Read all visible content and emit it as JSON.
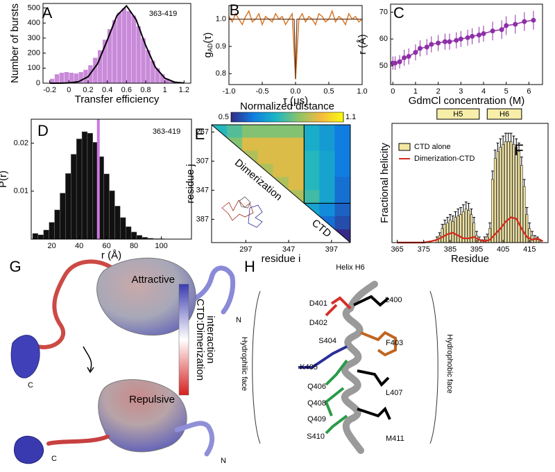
{
  "chart_data": [
    {
      "type": "histogram",
      "panel": "A",
      "annotation": "363-419",
      "xlabel": "Transfer efficiency",
      "ylabel": "Number of bursts",
      "color": "#c98ad9",
      "bins": [
        -0.2,
        -0.15,
        -0.1,
        -0.05,
        0,
        0.05,
        0.1,
        0.15,
        0.2,
        0.25,
        0.3,
        0.35,
        0.4,
        0.45,
        0.5,
        0.55,
        0.6,
        0.65,
        0.7,
        0.75,
        0.8,
        0.85,
        0.9,
        0.95,
        1,
        1.05,
        1.1,
        1.15
      ],
      "values": [
        30,
        60,
        70,
        75,
        70,
        65,
        75,
        90,
        120,
        170,
        220,
        290,
        360,
        420,
        470,
        500,
        480,
        450,
        380,
        300,
        220,
        150,
        100,
        60,
        30,
        15,
        5
      ],
      "fit": {
        "color": "#000000",
        "x": [
          -0.2,
          -0.1,
          0,
          0.1,
          0.2,
          0.3,
          0.4,
          0.5,
          0.6,
          0.7,
          0.8,
          0.9,
          1,
          1.1,
          1.2
        ],
        "values": [
          0,
          0.2,
          1.8,
          10,
          43,
          131,
          286,
          449,
          514,
          423,
          251,
          107,
          33,
          7,
          1
        ]
      },
      "xlim": [
        -0.27,
        1.27
      ],
      "ylim": [
        0,
        530
      ],
      "xticks": [
        -0.2,
        0,
        0.2,
        0.4,
        0.6,
        0.8,
        1,
        1.2
      ],
      "yticks": [
        0,
        100,
        200,
        300,
        400,
        500
      ]
    },
    {
      "type": "line",
      "panel": "B",
      "xlabel": "τ (μs)",
      "ylabel": {
        "main": "g",
        "sub": "AD",
        "tail": "(τ)"
      },
      "color": "#d8782a",
      "x": [
        -1,
        -0.95,
        -0.9,
        -0.85,
        -0.8,
        -0.75,
        -0.7,
        -0.65,
        -0.6,
        -0.55,
        -0.5,
        -0.45,
        -0.4,
        -0.35,
        -0.3,
        -0.25,
        -0.2,
        -0.15,
        -0.1,
        -0.05,
        0,
        0.05,
        0.1,
        0.15,
        0.2,
        0.25,
        0.3,
        0.35,
        0.4,
        0.45,
        0.5,
        0.55,
        0.6,
        0.65,
        0.7,
        0.75,
        0.8,
        0.85,
        0.9,
        0.95,
        1
      ],
      "values": [
        1.01,
        0.99,
        1.02,
        1,
        0.98,
        1.01,
        1.03,
        0.99,
        1,
        1.02,
        0.98,
        1.01,
        1,
        0.99,
        1.02,
        1,
        1.01,
        0.98,
        1,
        1.02,
        0.78,
        1,
        1.02,
        0.99,
        1.01,
        1,
        0.98,
        1.02,
        1.01,
        0.99,
        1,
        1.03,
        0.99,
        1.01,
        1,
        0.98,
        1.02,
        1,
        1.01,
        0.99,
        1
      ],
      "fit": {
        "color": "#6b3a1a",
        "x": [
          -1,
          -0.02,
          0,
          0.02,
          1
        ],
        "values": [
          1,
          1,
          0.78,
          1,
          1
        ]
      },
      "xlim": [
        -1,
        1
      ],
      "ylim": [
        0.76,
        1.05
      ],
      "xticks": [
        {
          "value": -1,
          "label": "-1.0"
        },
        -0.5,
        {
          "value": 0,
          "label": "0.0"
        },
        0.5,
        {
          "value": 1,
          "label": "1.0"
        }
      ],
      "yticks": [
        0.8,
        0.9,
        {
          "value": 1,
          "label": "1.0"
        }
      ]
    },
    {
      "type": "scatter",
      "panel": "C",
      "xlabel": "GdmCl concentration (M)",
      "ylabel": "r (Å)",
      "color": "#8e2fa8",
      "x": [
        0,
        0.1,
        0.3,
        0.5,
        0.7,
        1,
        1.2,
        1.5,
        1.7,
        2,
        2.3,
        2.5,
        2.8,
        3,
        3.3,
        3.5,
        3.8,
        4,
        4.4,
        4.8,
        5,
        5.4,
        5.8,
        6.2
      ],
      "values": [
        51,
        51,
        51.5,
        53,
        53.5,
        55,
        56.5,
        57,
        58,
        58.5,
        59,
        59,
        59.5,
        60,
        60.5,
        61,
        61.5,
        62,
        63,
        63.5,
        65,
        65.5,
        66.5,
        67
      ],
      "errors": [
        2.5,
        2.5,
        2.5,
        3,
        3,
        3,
        3,
        3,
        3,
        3,
        3,
        3,
        3,
        3,
        3,
        3,
        3,
        3,
        3.5,
        3.5,
        3.5,
        3.5,
        3.5,
        3.5
      ],
      "xlim": [
        -0.1,
        6.6
      ],
      "ylim": [
        43,
        73
      ],
      "xticks": [
        0,
        1,
        2,
        3,
        4,
        5,
        6
      ],
      "yticks": [
        50,
        60,
        70
      ]
    },
    {
      "type": "histogram",
      "panel": "D",
      "annotation": "363-419",
      "xlabel": "r (Å)",
      "ylabel": "P(r)",
      "color": "#111111",
      "bins": [
        6,
        10,
        14,
        18,
        22,
        26,
        30,
        34,
        38,
        42,
        46,
        50,
        54,
        58,
        62,
        66,
        70,
        74,
        78,
        82,
        86,
        90,
        94,
        98,
        102
      ],
      "values": [
        0.0012,
        0.0009,
        0.0019,
        0.0035,
        0.0061,
        0.0096,
        0.0137,
        0.0177,
        0.0209,
        0.0224,
        0.0221,
        0.0202,
        0.0172,
        0.0136,
        0.0101,
        0.0069,
        0.0045,
        0.0026,
        0.0015,
        0.0008,
        0.0004,
        0.0002,
        0.0001,
        0.0001
      ],
      "marker": {
        "x": 54,
        "color": "#cc77e0"
      },
      "xlim": [
        5,
        122
      ],
      "ylim": [
        0,
        0.025
      ],
      "xticks": [
        20,
        40,
        60,
        80,
        100
      ],
      "yticks": [
        0.01,
        0.02
      ]
    },
    {
      "type": "heatmap",
      "panel": "E",
      "xlabel": "residue i",
      "ylabel": "residue j",
      "regions": [
        "Dimerization",
        "CTD"
      ],
      "boundary": 365,
      "edges": [
        257,
        275,
        293,
        311,
        329,
        347,
        365,
        383,
        401,
        419
      ],
      "matrix": [
        [
          0.75,
          0.8,
          0.85,
          0.85,
          0.85,
          0.85,
          0.72,
          0.68,
          0.62
        ],
        [
          null,
          0.85,
          0.95,
          0.95,
          0.95,
          0.95,
          0.72,
          0.68,
          0.62
        ],
        [
          null,
          null,
          0.9,
          0.95,
          0.95,
          0.95,
          0.75,
          0.7,
          0.62
        ],
        [
          null,
          null,
          null,
          0.9,
          0.95,
          0.95,
          0.75,
          0.7,
          0.62
        ],
        [
          null,
          null,
          null,
          null,
          0.9,
          0.95,
          0.75,
          0.7,
          0.6
        ],
        [
          null,
          null,
          null,
          null,
          null,
          0.9,
          0.78,
          0.7,
          0.6
        ],
        [
          null,
          null,
          null,
          null,
          null,
          null,
          0.7,
          0.65,
          0.58
        ],
        [
          null,
          null,
          null,
          null,
          null,
          null,
          null,
          0.6,
          0.55
        ],
        [
          null,
          null,
          null,
          null,
          null,
          null,
          null,
          null,
          0.5
        ]
      ],
      "colormap": [
        "#352a87",
        "#0f7ee0",
        "#1bb6c4",
        "#8cc36a",
        "#f5ba3d",
        "#f9fb0e"
      ],
      "colorbar": {
        "title": "Normalized distance",
        "lim": [
          0.5,
          1.1
        ],
        "ticks": [
          0.5,
          1.1
        ]
      },
      "xlim": [
        257,
        419
      ],
      "ylim": [
        257,
        419
      ],
      "xticks": [
        297,
        347,
        397
      ],
      "yticks": [
        267,
        307,
        347,
        387
      ]
    },
    {
      "type": "bar",
      "panel": "F",
      "xlabel": "Residue",
      "ylabel": "Fractional helicity",
      "series": [
        {
          "name": "CTD alone",
          "color": "#f3e6a0",
          "x": [
            380,
            381,
            382,
            383,
            384,
            385,
            386,
            387,
            388,
            389,
            390,
            391,
            392,
            393,
            394,
            395,
            396,
            397,
            398,
            399,
            400,
            401,
            402,
            403,
            404,
            405,
            406,
            407,
            408,
            409,
            410,
            411,
            412,
            413,
            414,
            415,
            416,
            417,
            418,
            419
          ],
          "values": [
            0.02,
            0.05,
            0.1,
            0.13,
            0.14,
            0.16,
            0.15,
            0.18,
            0.19,
            0.2,
            0.22,
            0.24,
            0.23,
            0.2,
            0.14,
            0.05,
            0.02,
            0.01,
            0.02,
            0.04,
            0.1,
            0.45,
            0.6,
            0.65,
            0.68,
            0.7,
            0.72,
            0.72,
            0.72,
            0.7,
            0.68,
            0.65,
            0.55,
            0.4,
            0.2,
            0.1,
            0.05,
            0.03,
            0.02,
            0.01
          ],
          "errors": [
            0.02,
            0.02,
            0.03,
            0.03,
            0.04,
            0.04,
            0.04,
            0.04,
            0.05,
            0.05,
            0.05,
            0.05,
            0.05,
            0.04,
            0.04,
            0.03,
            0.02,
            0.01,
            0.02,
            0.02,
            0.04,
            0.06,
            0.06,
            0.06,
            0.06,
            0.06,
            0.06,
            0.06,
            0.06,
            0.06,
            0.06,
            0.06,
            0.06,
            0.05,
            0.05,
            0.04,
            0.03,
            0.02,
            0.02,
            0.01
          ]
        },
        {
          "name": "Dimerization-CTD",
          "color": "#d42a1e",
          "type": "line",
          "x": [
            365,
            370,
            375,
            378,
            380,
            382,
            384,
            386,
            388,
            390,
            392,
            394,
            396,
            398,
            400,
            402,
            404,
            406,
            408,
            410,
            412,
            414,
            416,
            418,
            420
          ],
          "values": [
            0,
            0,
            0,
            0.01,
            0.02,
            0.04,
            0.06,
            0.07,
            0.05,
            0.03,
            0.03,
            0.04,
            0.02,
            0.01,
            0.02,
            0.06,
            0.1,
            0.15,
            0.18,
            0.17,
            0.1,
            0.04,
            0.02,
            0.03,
            0.01
          ]
        }
      ],
      "helices": [
        {
          "label": "H5",
          "start": 380,
          "end": 396
        },
        {
          "label": "H6",
          "start": 399,
          "end": 412
        }
      ],
      "helix_color": "#f7eeaa",
      "xlim": [
        363,
        422
      ],
      "ylim": [
        0,
        0.85
      ],
      "xticks": [
        365,
        375,
        385,
        395,
        405,
        415
      ]
    }
  ],
  "panel_g": {
    "panel": "G",
    "n_top": "N",
    "c_top": "C",
    "n_bottom": "N",
    "c_bottom": "C",
    "colorbar": {
      "top": "Attractive",
      "bottom": "Repulsive",
      "title": [
        "CTD:Dimerization",
        "interaction"
      ]
    }
  },
  "panel_h": {
    "panel": "H",
    "title": "Helix H6",
    "left_face": "Hydrophilic face",
    "right_face": "Hydrophobic face",
    "residues": [
      {
        "label": "L400",
        "color": "#000000"
      },
      {
        "label": "D401",
        "color": "#e0342a"
      },
      {
        "label": "D402",
        "color": "#e0342a"
      },
      {
        "label": "F403",
        "color": "#b5651d"
      },
      {
        "label": "S404",
        "color": "#2a9a48"
      },
      {
        "label": "K405",
        "color": "#2b2e9a"
      },
      {
        "label": "Q406",
        "color": "#2a9a48"
      },
      {
        "label": "L407",
        "color": "#000000"
      },
      {
        "label": "Q408",
        "color": "#2a9a48"
      },
      {
        "label": "Q409",
        "color": "#2a9a48"
      },
      {
        "label": "S410",
        "color": "#2a9a48"
      },
      {
        "label": "M411",
        "color": "#000000"
      }
    ]
  }
}
